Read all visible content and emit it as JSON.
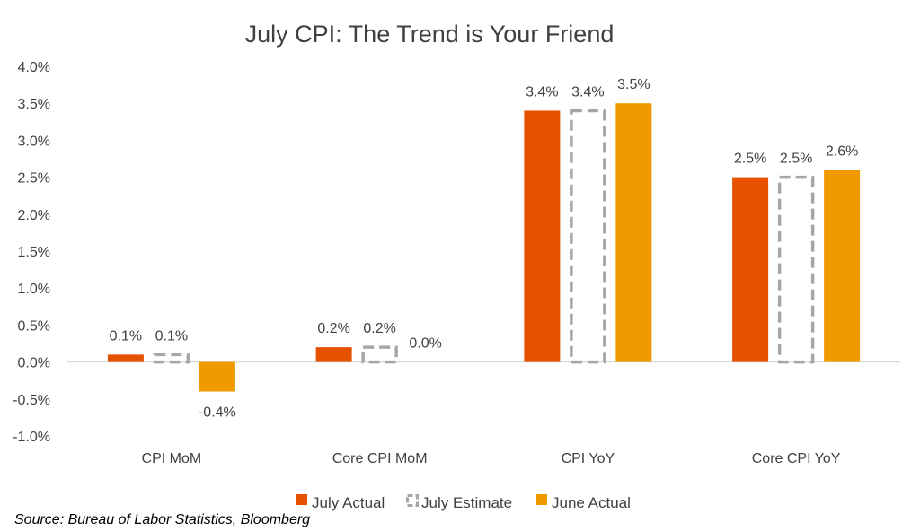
{
  "chart_data": {
    "type": "bar",
    "title": "July CPI:  The Trend is Your Friend",
    "categories": [
      "CPI MoM",
      "Core CPI MoM",
      "CPI YoY",
      "Core CPI YoY"
    ],
    "series": [
      {
        "name": "July Actual",
        "values": [
          0.1,
          0.2,
          3.4,
          2.5
        ],
        "labels": [
          "0.1%",
          "0.2%",
          "3.4%",
          "2.5%"
        ],
        "color": "#E65100",
        "style": "solid"
      },
      {
        "name": "July Estimate",
        "values": [
          0.1,
          0.2,
          3.4,
          2.5
        ],
        "labels": [
          "0.1%",
          "0.2%",
          "3.4%",
          "2.5%"
        ],
        "color": "#A6A6A6",
        "style": "dashed"
      },
      {
        "name": "June Actual",
        "values": [
          -0.4,
          0.0,
          3.5,
          2.6
        ],
        "labels": [
          "-0.4%",
          "0.0%",
          "3.5%",
          "2.6%"
        ],
        "color": "#F09A00",
        "style": "solid"
      }
    ],
    "ylim": [
      -1.0,
      4.0
    ],
    "yticks": [
      4.0,
      3.5,
      3.0,
      2.5,
      2.0,
      1.5,
      1.0,
      0.5,
      0.0,
      -0.5,
      -1.0
    ],
    "ytick_labels": [
      "4.0%",
      "3.5%",
      "3.0%",
      "2.5%",
      "2.0%",
      "1.5%",
      "1.0%",
      "0.5%",
      "0.0%",
      "-0.5%",
      "-1.0%"
    ],
    "xlabel": "",
    "ylabel": "",
    "grid": false,
    "legend_position": "bottom"
  },
  "source_note": "Source: Bureau of Labor Statistics, Bloomberg"
}
